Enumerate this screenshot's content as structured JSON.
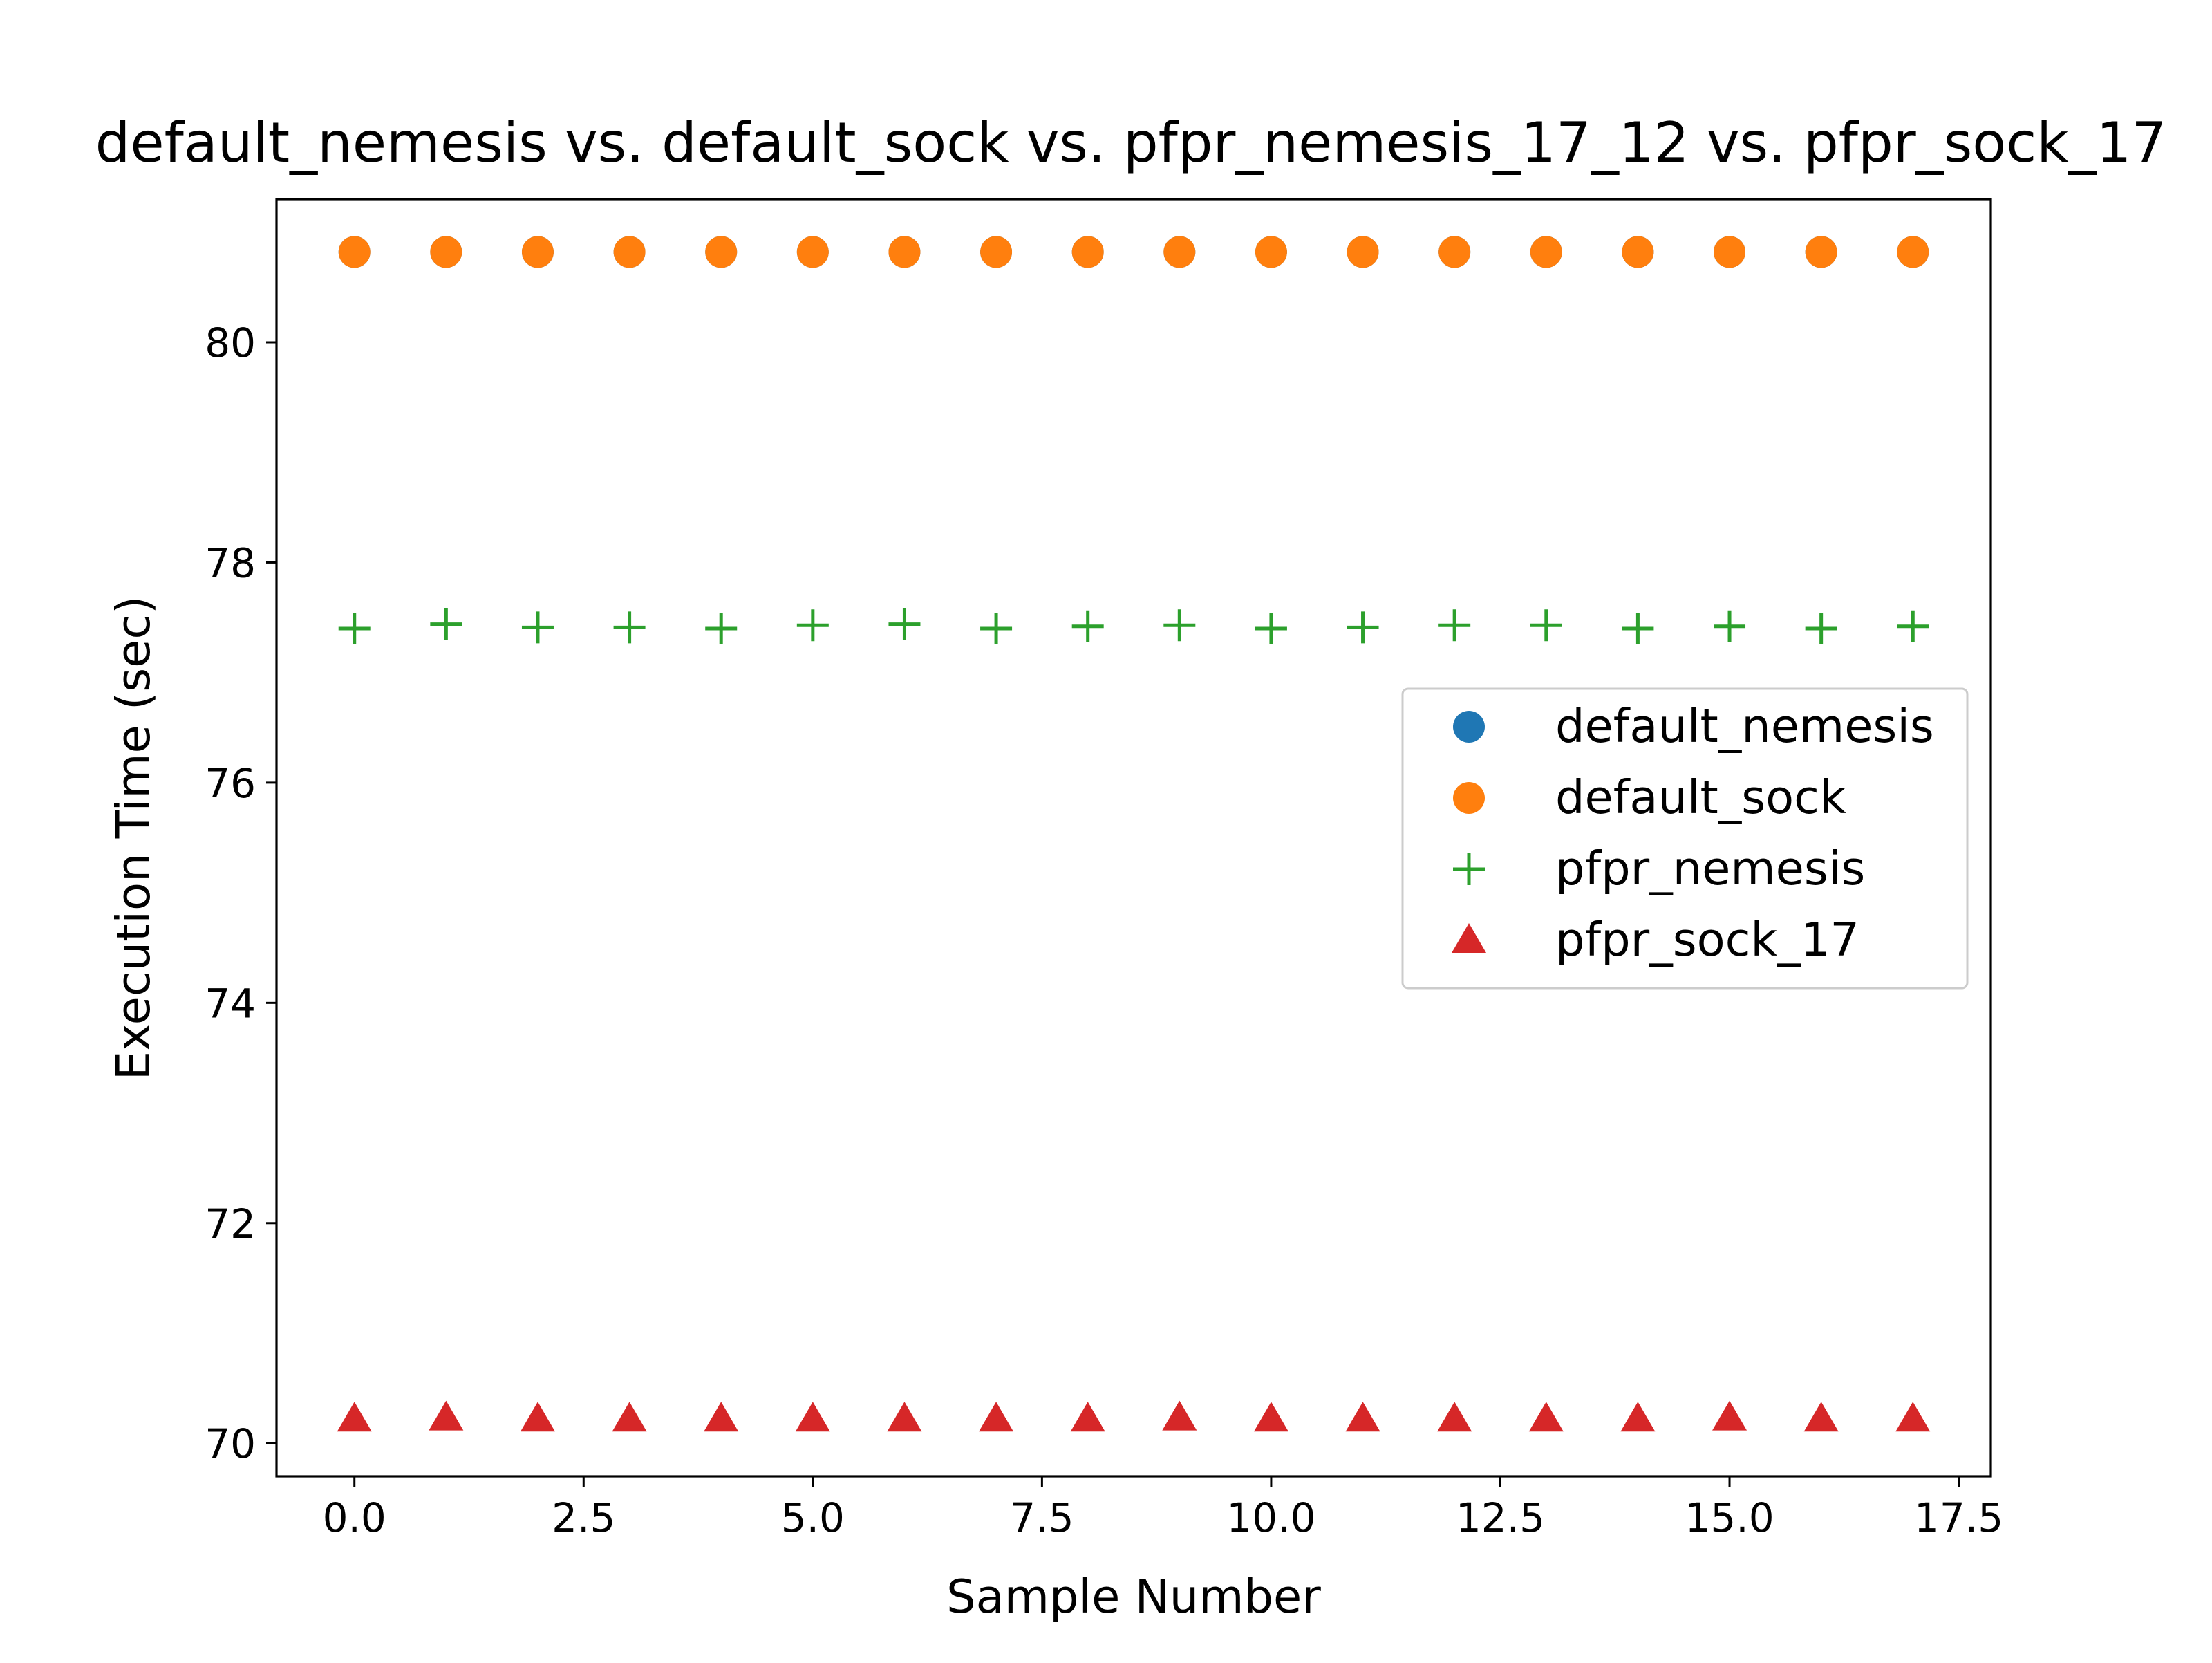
{
  "chart_data": {
    "type": "scatter",
    "title": "default_nemesis vs. default_sock vs. pfpr_nemesis_17_12 vs. pfpr_sock_17",
    "xlabel": "Sample Number",
    "ylabel": "Execution Time (sec)",
    "xlim": [
      -0.85,
      17.85
    ],
    "ylim": [
      69.7,
      81.3
    ],
    "xticks": [
      0.0,
      2.5,
      5.0,
      7.5,
      10.0,
      12.5,
      15.0,
      17.5
    ],
    "xtick_labels": [
      "0.0",
      "2.5",
      "5.0",
      "7.5",
      "10.0",
      "12.5",
      "15.0",
      "17.5"
    ],
    "yticks": [
      70,
      72,
      74,
      76,
      78,
      80
    ],
    "ytick_labels": [
      "70",
      "72",
      "74",
      "76",
      "78",
      "80"
    ],
    "grid": false,
    "legend_position": "center-right",
    "x": [
      0,
      1,
      2,
      3,
      4,
      5,
      6,
      7,
      8,
      9,
      10,
      11,
      12,
      13,
      14,
      15,
      16,
      17
    ],
    "series": [
      {
        "name": "default_nemesis",
        "marker": "circle",
        "color": "#1f77b4",
        "values": [
          80.82,
          80.82,
          80.82,
          80.82,
          80.82,
          80.82,
          80.82,
          80.82,
          80.82,
          80.82,
          80.82,
          80.82,
          80.82,
          80.82,
          80.82,
          80.82,
          80.82,
          80.82
        ]
      },
      {
        "name": "default_sock",
        "marker": "circle",
        "color": "#ff7f0e",
        "values": [
          80.82,
          80.82,
          80.82,
          80.82,
          80.82,
          80.82,
          80.82,
          80.82,
          80.82,
          80.82,
          80.82,
          80.82,
          80.82,
          80.82,
          80.82,
          80.82,
          80.82,
          80.82
        ]
      },
      {
        "name": "pfpr_nemesis",
        "marker": "plus",
        "color": "#2ca02c",
        "values": [
          77.4,
          77.44,
          77.41,
          77.41,
          77.4,
          77.43,
          77.44,
          77.4,
          77.42,
          77.43,
          77.4,
          77.41,
          77.43,
          77.43,
          77.4,
          77.42,
          77.4,
          77.42
        ]
      },
      {
        "name": "pfpr_sock_17",
        "marker": "triangle",
        "color": "#d62728",
        "values": [
          70.22,
          70.23,
          70.22,
          70.22,
          70.22,
          70.22,
          70.22,
          70.22,
          70.22,
          70.23,
          70.22,
          70.22,
          70.22,
          70.22,
          70.22,
          70.23,
          70.22,
          70.22
        ]
      }
    ]
  }
}
